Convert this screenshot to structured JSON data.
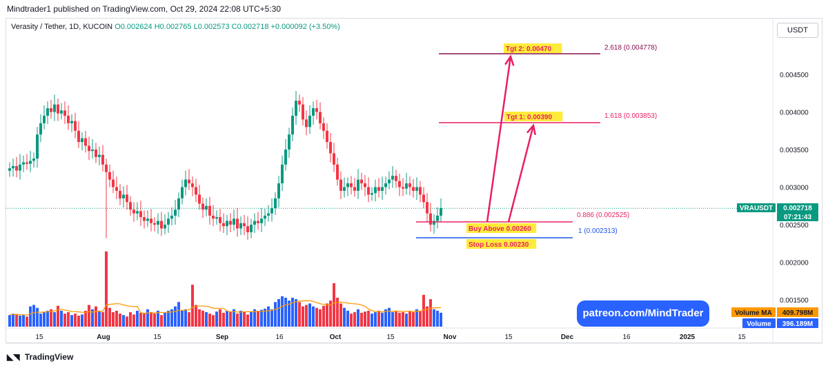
{
  "header": {
    "publish_line": "Mindtrader1 published on TradingView.com, Oct 29, 2024 22:08 UTC+5:30",
    "symbol_line": "Verasity / Tether, 1D, KUCOIN",
    "ohlc_values": "O0.002624  H0.002765  L0.002573  C0.002718  +0.000092 (+3.50%)",
    "currency_button": "USDT"
  },
  "colors": {
    "up": "#089981",
    "down": "#f23645",
    "vol_up": "#2962ff",
    "vol_down": "#f23645",
    "ma": "#ff9800",
    "fib_top": "#880e4f",
    "fib_mid": "#e91e63",
    "fib_buy": "#e91e63",
    "fib_stop": "#1e53e5",
    "arrow": "#e91e63",
    "label_bg": "#ffeb3b"
  },
  "chart_data": {
    "type": "candlestick",
    "symbol": "VRAUSDT",
    "price_axis": {
      "min": 0.0013,
      "max": 0.005,
      "ticks": [
        0.0015,
        0.002,
        0.0025,
        0.003,
        0.0035,
        0.004,
        0.0045
      ],
      "tick_labels": [
        "0.001500",
        "0.002000",
        "0.002500",
        "0.003000",
        "0.003500",
        "0.004000",
        "0.004500"
      ]
    },
    "x_axis": {
      "ticks": [
        "15",
        "Aug",
        "15",
        "Sep",
        "16",
        "Oct",
        "15",
        "Nov",
        "15",
        "Dec",
        "16",
        "2025",
        "15"
      ]
    },
    "last_price": {
      "symbol_label": "VRAUSDT",
      "value": "0.002718",
      "countdown": "07:21:43",
      "price": 0.002718
    },
    "volume_ma": {
      "label": "Volume MA",
      "value": "409.798M"
    },
    "volume": {
      "label": "Volume",
      "value": "396.189M"
    },
    "fib_levels": [
      {
        "ratio_label": "2.618 (0.004778)",
        "price": 0.004778,
        "key": "fib_top"
      },
      {
        "ratio_label": "1.618 (0.003853)",
        "price": 0.003853,
        "key": "fib_mid"
      },
      {
        "ratio_label": "0.886 (0.002525)",
        "price": 0.002525,
        "key": "fib_buy"
      },
      {
        "ratio_label": "1 (0.002313)",
        "price": 0.002313,
        "key": "fib_stop"
      }
    ],
    "annotations": {
      "tgt2": "Tgt 2: 0.00470",
      "tgt1": "Tgt 1: 0.00390",
      "buy": "Buy Above 0.00260",
      "stop": "Stop Loss 0.00230"
    },
    "closes": [
      0.00325,
      0.00328,
      0.00322,
      0.0033,
      0.00333,
      0.00331,
      0.00335,
      0.00338,
      0.0037,
      0.00385,
      0.00395,
      0.00405,
      0.004,
      0.0041,
      0.00398,
      0.00402,
      0.00395,
      0.00385,
      0.00388,
      0.00375,
      0.0036,
      0.00365,
      0.00355,
      0.00348,
      0.0035,
      0.0034,
      0.00343,
      0.0033,
      0.0032,
      0.0031,
      0.003,
      0.00295,
      0.00285,
      0.0029,
      0.0028,
      0.0027,
      0.00265,
      0.00268,
      0.0026,
      0.00255,
      0.00258,
      0.00252,
      0.0025,
      0.00255,
      0.00245,
      0.0025,
      0.00258,
      0.00262,
      0.0027,
      0.00285,
      0.003,
      0.0031,
      0.00305,
      0.003,
      0.0029,
      0.00278,
      0.0027,
      0.00275,
      0.00262,
      0.00258,
      0.0026,
      0.00252,
      0.00248,
      0.00255,
      0.0025,
      0.00258,
      0.00245,
      0.00252,
      0.00248,
      0.0024,
      0.0025,
      0.00255,
      0.00252,
      0.00258,
      0.00262,
      0.00265,
      0.00272,
      0.00285,
      0.00305,
      0.0033,
      0.0035,
      0.0037,
      0.00395,
      0.00415,
      0.0041,
      0.0039,
      0.0038,
      0.00395,
      0.00405,
      0.004,
      0.00385,
      0.00375,
      0.0036,
      0.00345,
      0.0033,
      0.0031,
      0.00295,
      0.003,
      0.00305,
      0.003,
      0.00295,
      0.0031,
      0.00305,
      0.003,
      0.0029,
      0.00292,
      0.003,
      0.00295,
      0.003,
      0.00305,
      0.0031,
      0.00315,
      0.00308,
      0.003,
      0.00298,
      0.00305,
      0.003,
      0.00295,
      0.003,
      0.0029,
      0.0028,
      0.00265,
      0.0025,
      0.00255,
      0.00262,
      0.00272
    ],
    "volumes": [
      0.4,
      0.45,
      0.42,
      0.38,
      0.4,
      0.35,
      0.7,
      0.75,
      0.65,
      0.45,
      0.5,
      0.55,
      0.6,
      0.5,
      0.72,
      0.55,
      0.45,
      0.5,
      0.4,
      0.45,
      0.38,
      0.42,
      0.55,
      0.75,
      0.6,
      0.7,
      0.55,
      0.5,
      2.6,
      0.65,
      0.5,
      0.55,
      0.45,
      0.4,
      0.35,
      0.5,
      0.42,
      0.55,
      0.48,
      0.45,
      0.6,
      0.5,
      0.45,
      0.55,
      0.4,
      0.48,
      0.55,
      0.6,
      0.7,
      0.85,
      0.55,
      0.6,
      0.5,
      1.45,
      0.75,
      0.6,
      0.55,
      0.5,
      0.45,
      0.4,
      0.52,
      0.6,
      0.48,
      0.55,
      0.5,
      0.6,
      0.45,
      0.55,
      0.5,
      0.42,
      0.52,
      0.6,
      0.55,
      0.58,
      0.62,
      0.7,
      0.6,
      0.85,
      0.95,
      1.05,
      1.0,
      0.9,
      1.0,
      0.95,
      0.85,
      0.7,
      0.75,
      0.8,
      0.7,
      0.65,
      0.6,
      0.72,
      0.8,
      0.9,
      1.5,
      1.0,
      0.8,
      0.65,
      0.55,
      0.45,
      0.5,
      0.6,
      0.48,
      0.52,
      0.55,
      0.45,
      0.5,
      0.55,
      0.48,
      0.6,
      0.65,
      0.5,
      0.55,
      0.48,
      0.5,
      0.45,
      0.55,
      0.5,
      0.6,
      0.55,
      1.1,
      0.7,
      0.95,
      0.6,
      0.55,
      0.48
    ]
  },
  "watermark": {
    "patreon": "patreon.com/MindTrader"
  },
  "footer": {
    "brand": "TradingView"
  }
}
